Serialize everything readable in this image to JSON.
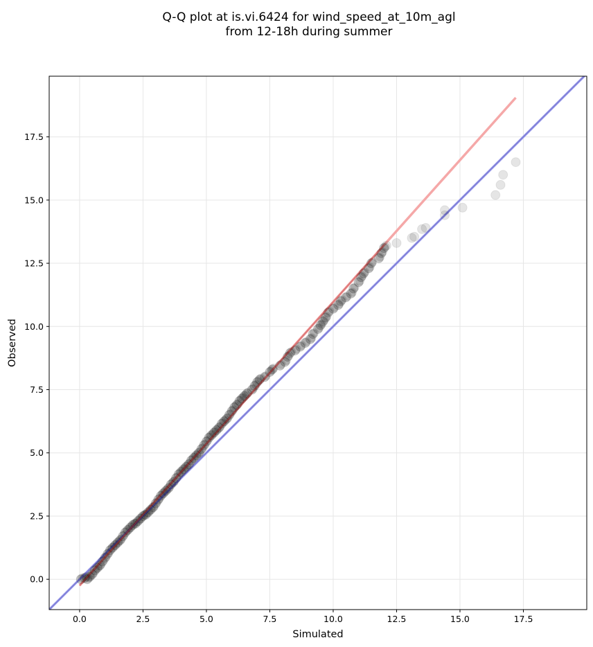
{
  "chart_data": {
    "type": "scatter",
    "title_lines": [
      "Q-Q plot at is.vi.6424 for wind_speed_at_10m_agl",
      "from 12-18h during summer"
    ],
    "xlabel": "Simulated",
    "ylabel": "Observed",
    "xlim": [
      -1.2,
      20.0
    ],
    "ylim": [
      -1.2,
      19.9
    ],
    "xticks": [
      0.0,
      2.5,
      5.0,
      7.5,
      10.0,
      12.5,
      15.0,
      17.5
    ],
    "yticks": [
      0.0,
      2.5,
      5.0,
      7.5,
      10.0,
      12.5,
      15.0,
      17.5
    ],
    "xtick_labels": [
      "0.0",
      "2.5",
      "5.0",
      "7.5",
      "10.0",
      "12.5",
      "15.0",
      "17.5"
    ],
    "ytick_labels": [
      "0.0",
      "2.5",
      "5.0",
      "7.5",
      "10.0",
      "12.5",
      "15.0",
      "17.5"
    ],
    "grid": true,
    "points": [
      {
        "x": 0.05,
        "y": 0.0
      },
      {
        "x": 0.2,
        "y": 0.05
      },
      {
        "x": 0.3,
        "y": 0.0
      },
      {
        "x": 0.4,
        "y": 0.1
      },
      {
        "x": 0.5,
        "y": 0.2
      },
      {
        "x": 0.6,
        "y": 0.35
      },
      {
        "x": 0.7,
        "y": 0.45
      },
      {
        "x": 0.8,
        "y": 0.55
      },
      {
        "x": 0.9,
        "y": 0.7
      },
      {
        "x": 1.0,
        "y": 0.85
      },
      {
        "x": 1.1,
        "y": 1.0
      },
      {
        "x": 1.2,
        "y": 1.15
      },
      {
        "x": 1.3,
        "y": 1.25
      },
      {
        "x": 1.4,
        "y": 1.35
      },
      {
        "x": 1.5,
        "y": 1.45
      },
      {
        "x": 1.6,
        "y": 1.55
      },
      {
        "x": 1.7,
        "y": 1.7
      },
      {
        "x": 1.8,
        "y": 1.85
      },
      {
        "x": 1.9,
        "y": 1.95
      },
      {
        "x": 2.0,
        "y": 2.05
      },
      {
        "x": 2.1,
        "y": 2.15
      },
      {
        "x": 2.2,
        "y": 2.2
      },
      {
        "x": 2.3,
        "y": 2.3
      },
      {
        "x": 2.4,
        "y": 2.4
      },
      {
        "x": 2.5,
        "y": 2.5
      },
      {
        "x": 2.6,
        "y": 2.55
      },
      {
        "x": 2.7,
        "y": 2.65
      },
      {
        "x": 2.8,
        "y": 2.75
      },
      {
        "x": 2.9,
        "y": 2.85
      },
      {
        "x": 3.0,
        "y": 3.0
      },
      {
        "x": 3.1,
        "y": 3.15
      },
      {
        "x": 3.2,
        "y": 3.3
      },
      {
        "x": 3.3,
        "y": 3.4
      },
      {
        "x": 3.4,
        "y": 3.5
      },
      {
        "x": 3.5,
        "y": 3.6
      },
      {
        "x": 3.6,
        "y": 3.75
      },
      {
        "x": 3.7,
        "y": 3.85
      },
      {
        "x": 3.8,
        "y": 4.0
      },
      {
        "x": 3.9,
        "y": 4.15
      },
      {
        "x": 4.0,
        "y": 4.25
      },
      {
        "x": 4.1,
        "y": 4.35
      },
      {
        "x": 4.2,
        "y": 4.45
      },
      {
        "x": 4.3,
        "y": 4.55
      },
      {
        "x": 4.4,
        "y": 4.7
      },
      {
        "x": 4.5,
        "y": 4.8
      },
      {
        "x": 4.6,
        "y": 4.9
      },
      {
        "x": 4.7,
        "y": 5.0
      },
      {
        "x": 4.8,
        "y": 5.15
      },
      {
        "x": 4.9,
        "y": 5.3
      },
      {
        "x": 5.0,
        "y": 5.45
      },
      {
        "x": 5.1,
        "y": 5.6
      },
      {
        "x": 5.2,
        "y": 5.7
      },
      {
        "x": 5.3,
        "y": 5.8
      },
      {
        "x": 5.4,
        "y": 5.9
      },
      {
        "x": 5.5,
        "y": 6.0
      },
      {
        "x": 5.6,
        "y": 6.15
      },
      {
        "x": 5.7,
        "y": 6.25
      },
      {
        "x": 5.8,
        "y": 6.35
      },
      {
        "x": 5.9,
        "y": 6.5
      },
      {
        "x": 6.0,
        "y": 6.65
      },
      {
        "x": 6.1,
        "y": 6.8
      },
      {
        "x": 6.2,
        "y": 6.9
      },
      {
        "x": 6.3,
        "y": 7.05
      },
      {
        "x": 6.4,
        "y": 7.15
      },
      {
        "x": 6.5,
        "y": 7.25
      },
      {
        "x": 6.6,
        "y": 7.35
      },
      {
        "x": 6.8,
        "y": 7.5
      },
      {
        "x": 6.9,
        "y": 7.65
      },
      {
        "x": 7.0,
        "y": 7.8
      },
      {
        "x": 7.1,
        "y": 7.9
      },
      {
        "x": 7.3,
        "y": 8.0
      },
      {
        "x": 7.5,
        "y": 8.2
      },
      {
        "x": 7.6,
        "y": 8.3
      },
      {
        "x": 7.9,
        "y": 8.45
      },
      {
        "x": 8.1,
        "y": 8.6
      },
      {
        "x": 8.2,
        "y": 8.8
      },
      {
        "x": 8.3,
        "y": 8.95
      },
      {
        "x": 8.5,
        "y": 9.05
      },
      {
        "x": 8.7,
        "y": 9.2
      },
      {
        "x": 8.9,
        "y": 9.35
      },
      {
        "x": 9.1,
        "y": 9.5
      },
      {
        "x": 9.2,
        "y": 9.7
      },
      {
        "x": 9.4,
        "y": 9.9
      },
      {
        "x": 9.5,
        "y": 10.05
      },
      {
        "x": 9.6,
        "y": 10.2
      },
      {
        "x": 9.7,
        "y": 10.35
      },
      {
        "x": 9.8,
        "y": 10.55
      },
      {
        "x": 10.0,
        "y": 10.7
      },
      {
        "x": 10.2,
        "y": 10.85
      },
      {
        "x": 10.3,
        "y": 11.0
      },
      {
        "x": 10.5,
        "y": 11.15
      },
      {
        "x": 10.7,
        "y": 11.3
      },
      {
        "x": 10.8,
        "y": 11.5
      },
      {
        "x": 11.0,
        "y": 11.75
      },
      {
        "x": 11.1,
        "y": 11.95
      },
      {
        "x": 11.2,
        "y": 12.1
      },
      {
        "x": 11.4,
        "y": 12.3
      },
      {
        "x": 11.5,
        "y": 12.5
      },
      {
        "x": 11.8,
        "y": 12.7
      },
      {
        "x": 11.9,
        "y": 12.9
      },
      {
        "x": 12.0,
        "y": 13.1
      },
      {
        "x": 12.1,
        "y": 13.2
      },
      {
        "x": 12.5,
        "y": 13.3
      },
      {
        "x": 13.1,
        "y": 13.5
      },
      {
        "x": 13.2,
        "y": 13.55
      },
      {
        "x": 13.5,
        "y": 13.85
      },
      {
        "x": 13.65,
        "y": 13.9
      },
      {
        "x": 14.4,
        "y": 14.4
      },
      {
        "x": 14.4,
        "y": 14.6
      },
      {
        "x": 15.1,
        "y": 14.7
      },
      {
        "x": 16.4,
        "y": 15.2
      },
      {
        "x": 16.6,
        "y": 15.6
      },
      {
        "x": 16.7,
        "y": 16.0
      },
      {
        "x": 17.2,
        "y": 16.5
      }
    ],
    "reference_lines": [
      {
        "color": "#b3b3f5",
        "from": [
          -1.2,
          -1.2
        ],
        "to": [
          20.0,
          20.0
        ]
      },
      {
        "color": "#f5a8a8",
        "from": [
          0.0,
          -0.25
        ],
        "to": [
          17.2,
          19.05
        ]
      }
    ],
    "colors": {
      "identity_line": "#b3b3f5",
      "fit_line": "#f5a8a8",
      "fit_line_dark": "#b32020",
      "identity_line_dark": "#2020a0",
      "points": "#000000",
      "grid": "#e6e6e6"
    }
  }
}
